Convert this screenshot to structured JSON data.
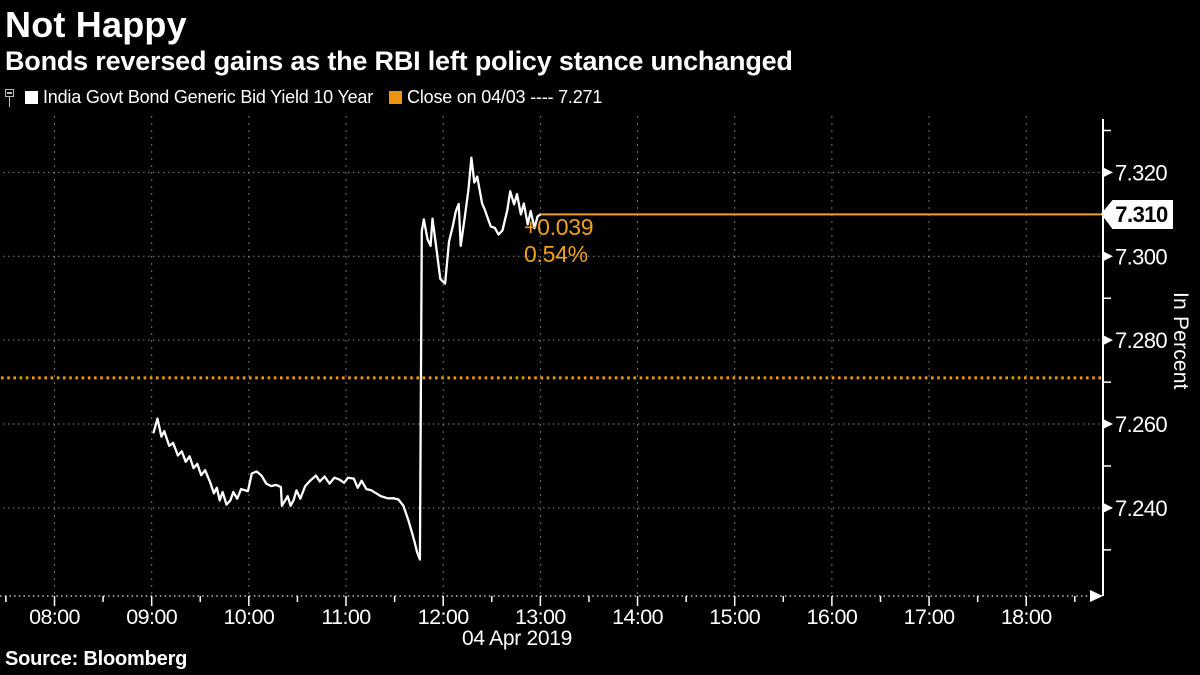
{
  "header": {
    "title": "Not Happy",
    "subtitle": "Bonds reversed gains as the RBI left policy stance unchanged"
  },
  "legend": {
    "series1": {
      "pin_icon": "track-pin-icon",
      "marker_color": "#ffffff",
      "label": "India Govt Bond Generic Bid Yield 10 Year"
    },
    "series2": {
      "marker_color": "#ee9410",
      "label": "Close on 04/03 ---- 7.271"
    }
  },
  "annotation": {
    "change": "+0.039",
    "pct_change": "0.54%"
  },
  "badge": {
    "last_value": "7.310"
  },
  "axis": {
    "ylabel": "In Percent",
    "date_label": "04 Apr 2019"
  },
  "footer": {
    "source": "Source: Bloomberg"
  },
  "colors": {
    "background": "#000000",
    "line_white": "#ffffff",
    "accent_orange": "#f2a01b",
    "close_dot_orange": "#ef9612",
    "grid_gray": "#999999"
  },
  "chart_data": {
    "type": "line",
    "title": "Not Happy",
    "series_name": "India Govt Bond Generic Bid Yield 10 Year",
    "ylabel": "In Percent",
    "date": "04 Apr 2019",
    "close_value": 7.271,
    "last_value": 7.31,
    "change": 0.039,
    "pct_change": 0.54,
    "x_domain": [
      7.47,
      18.79
    ],
    "y_domain": [
      7.219,
      7.3325
    ],
    "x_ticks_major": [
      8,
      9,
      10,
      11,
      12,
      13,
      14,
      15,
      16,
      17,
      18
    ],
    "x_tick_labels": [
      "08:00",
      "09:00",
      "10:00",
      "11:00",
      "12:00",
      "13:00",
      "14:00",
      "15:00",
      "16:00",
      "17:00",
      "18:00"
    ],
    "x_ticks_minor": [
      7.5,
      8.5,
      9.5,
      10.5,
      11.5,
      12.5,
      13.5,
      14.5,
      15.5,
      16.5,
      17.5,
      18.5
    ],
    "y_ticks_major": [
      7.24,
      7.26,
      7.28,
      7.3,
      7.32
    ],
    "y_ticks_minor": [
      7.23,
      7.25,
      7.27,
      7.29,
      7.33
    ],
    "grid": true,
    "legend_position": "top-left",
    "points": [
      [
        9.02,
        7.258
      ],
      [
        9.06,
        7.2613
      ],
      [
        9.1,
        7.257
      ],
      [
        9.13,
        7.2583
      ],
      [
        9.18,
        7.2548
      ],
      [
        9.22,
        7.2555
      ],
      [
        9.27,
        7.2525
      ],
      [
        9.31,
        7.2535
      ],
      [
        9.35,
        7.251
      ],
      [
        9.39,
        7.2523
      ],
      [
        9.43,
        7.2495
      ],
      [
        9.47,
        7.2505
      ],
      [
        9.51,
        7.2478
      ],
      [
        9.55,
        7.249
      ],
      [
        9.6,
        7.2462
      ],
      [
        9.64,
        7.2435
      ],
      [
        9.67,
        7.2448
      ],
      [
        9.7,
        7.2418
      ],
      [
        9.73,
        7.2438
      ],
      [
        9.77,
        7.2408
      ],
      [
        9.81,
        7.2418
      ],
      [
        9.84,
        7.2438
      ],
      [
        9.88,
        7.2422
      ],
      [
        9.92,
        7.2445
      ],
      [
        9.99,
        7.244
      ],
      [
        10.03,
        7.2482
      ],
      [
        10.08,
        7.2487
      ],
      [
        10.13,
        7.2477
      ],
      [
        10.18,
        7.2458
      ],
      [
        10.23,
        7.2452
      ],
      [
        10.28,
        7.2455
      ],
      [
        10.33,
        7.245
      ],
      [
        10.34,
        7.2405
      ],
      [
        10.4,
        7.2428
      ],
      [
        10.43,
        7.2405
      ],
      [
        10.46,
        7.2418
      ],
      [
        10.49,
        7.2442
      ],
      [
        10.53,
        7.2422
      ],
      [
        10.58,
        7.2452
      ],
      [
        10.63,
        7.2465
      ],
      [
        10.69,
        7.2477
      ],
      [
        10.73,
        7.2463
      ],
      [
        10.78,
        7.2475
      ],
      [
        10.83,
        7.2458
      ],
      [
        10.88,
        7.2472
      ],
      [
        10.93,
        7.2468
      ],
      [
        10.98,
        7.246
      ],
      [
        11.02,
        7.2472
      ],
      [
        11.08,
        7.247
      ],
      [
        11.12,
        7.2448
      ],
      [
        11.16,
        7.2465
      ],
      [
        11.21,
        7.2445
      ],
      [
        11.26,
        7.2442
      ],
      [
        11.31,
        7.2435
      ],
      [
        11.36,
        7.2428
      ],
      [
        11.43,
        7.2423
      ],
      [
        11.49,
        7.2423
      ],
      [
        11.54,
        7.242
      ],
      [
        11.59,
        7.2405
      ],
      [
        11.64,
        7.2372
      ],
      [
        11.68,
        7.234
      ],
      [
        11.71,
        7.2315
      ],
      [
        11.73,
        7.2295
      ],
      [
        11.76,
        7.2277
      ],
      [
        11.78,
        7.306
      ],
      [
        11.8,
        7.3088
      ],
      [
        11.84,
        7.304
      ],
      [
        11.87,
        7.3025
      ],
      [
        11.89,
        7.309
      ],
      [
        11.94,
        7.3
      ],
      [
        11.97,
        7.2946
      ],
      [
        12.02,
        7.2935
      ],
      [
        12.06,
        7.3035
      ],
      [
        12.1,
        7.3073
      ],
      [
        12.13,
        7.3107
      ],
      [
        12.16,
        7.3125
      ],
      [
        12.18,
        7.3025
      ],
      [
        12.22,
        7.309
      ],
      [
        12.26,
        7.316
      ],
      [
        12.29,
        7.3235
      ],
      [
        12.32,
        7.3176
      ],
      [
        12.35,
        7.319
      ],
      [
        12.4,
        7.3126
      ],
      [
        12.43,
        7.311
      ],
      [
        12.46,
        7.309
      ],
      [
        12.49,
        7.3071
      ],
      [
        12.53,
        7.3068
      ],
      [
        12.57,
        7.3052
      ],
      [
        12.61,
        7.3062
      ],
      [
        12.66,
        7.311
      ],
      [
        12.69,
        7.3155
      ],
      [
        12.73,
        7.3124
      ],
      [
        12.76,
        7.3148
      ],
      [
        12.8,
        7.31
      ],
      [
        12.83,
        7.3126
      ],
      [
        12.87,
        7.3076
      ],
      [
        12.9,
        7.3108
      ],
      [
        12.94,
        7.3067
      ],
      [
        12.97,
        7.3095
      ],
      [
        13.0,
        7.31
      ]
    ]
  }
}
